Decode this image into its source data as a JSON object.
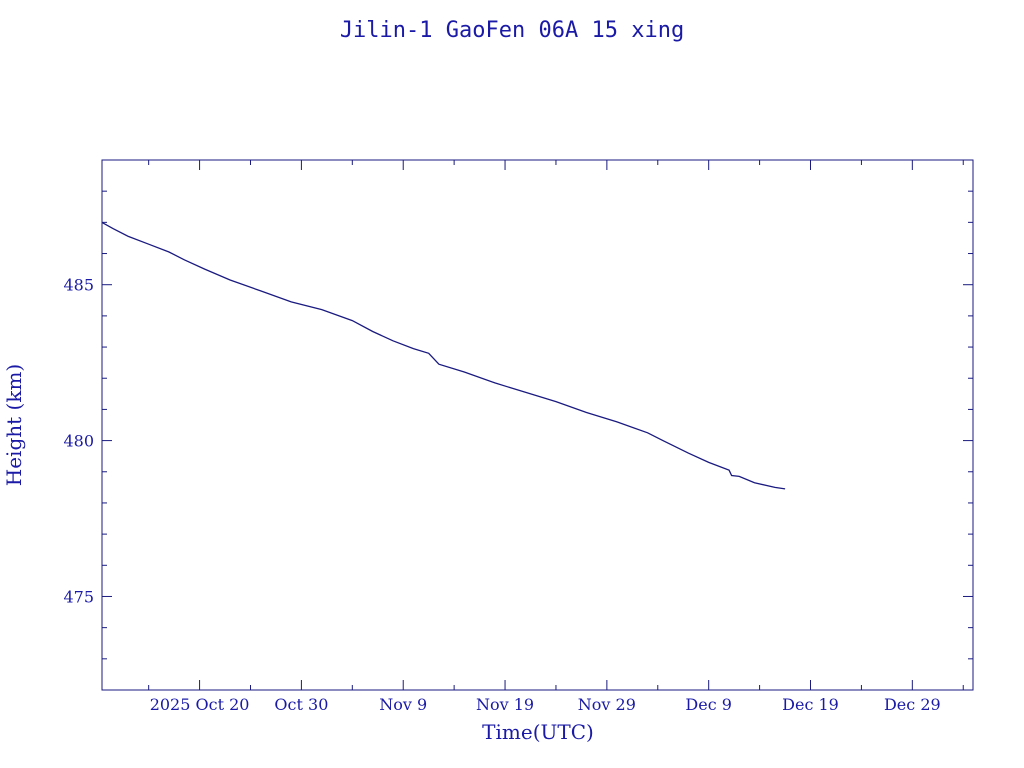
{
  "chart_data": {
    "type": "line",
    "title": "Jilin-1 GaoFen 06A 15 xing",
    "xlabel": "Time(UTC)",
    "ylabel": "Height (km)",
    "x_type": "date",
    "xlim": [
      "2025-10-10T10:00",
      "2026-01-03T23:00"
    ],
    "ylim": [
      472,
      489
    ],
    "x_major_ticks": [
      {
        "date": "2025-10-20",
        "label": "2025 Oct 20"
      },
      {
        "date": "2025-10-30",
        "label": "Oct 30"
      },
      {
        "date": "2025-11-09",
        "label": "Nov  9"
      },
      {
        "date": "2025-11-19",
        "label": "Nov 19"
      },
      {
        "date": "2025-11-29",
        "label": "Nov 29"
      },
      {
        "date": "2025-12-09",
        "label": "Dec  9"
      },
      {
        "date": "2025-12-19",
        "label": "Dec 19"
      },
      {
        "date": "2025-12-29",
        "label": "Dec 29"
      }
    ],
    "x_minor_ticks": [
      "2025-10-15",
      "2025-10-25",
      "2025-11-04",
      "2025-11-14",
      "2025-11-24",
      "2025-12-04",
      "2025-12-14",
      "2025-12-24",
      "2026-01-03"
    ],
    "y_major_ticks": [
      475,
      480,
      485
    ],
    "y_minor_ticks": [
      473,
      474,
      476,
      477,
      478,
      479,
      481,
      482,
      483,
      484,
      486,
      487,
      488
    ],
    "grid": false,
    "series": [
      {
        "color": "#1a1a80",
        "points": [
          {
            "x": "2025-10-10T10:00",
            "y": 487.0
          },
          {
            "x": "2025-10-11T12:00",
            "y": 486.8
          },
          {
            "x": "2025-10-13T00:00",
            "y": 486.55
          },
          {
            "x": "2025-10-15T00:00",
            "y": 486.3
          },
          {
            "x": "2025-10-17T00:00",
            "y": 486.05
          },
          {
            "x": "2025-10-18T12:00",
            "y": 485.8
          },
          {
            "x": "2025-10-20T12:00",
            "y": 485.5
          },
          {
            "x": "2025-10-23T00:00",
            "y": 485.15
          },
          {
            "x": "2025-10-26T00:00",
            "y": 484.8
          },
          {
            "x": "2025-10-29T00:00",
            "y": 484.45
          },
          {
            "x": "2025-11-01T00:00",
            "y": 484.2
          },
          {
            "x": "2025-11-04T00:00",
            "y": 483.85
          },
          {
            "x": "2025-11-06T00:00",
            "y": 483.5
          },
          {
            "x": "2025-11-08T00:00",
            "y": 483.2
          },
          {
            "x": "2025-11-10T00:00",
            "y": 482.95
          },
          {
            "x": "2025-11-11T12:00",
            "y": 482.8
          },
          {
            "x": "2025-11-12T12:00",
            "y": 482.45
          },
          {
            "x": "2025-11-15T00:00",
            "y": 482.2
          },
          {
            "x": "2025-11-18T00:00",
            "y": 481.85
          },
          {
            "x": "2025-11-21T00:00",
            "y": 481.55
          },
          {
            "x": "2025-11-24T00:00",
            "y": 481.25
          },
          {
            "x": "2025-11-27T00:00",
            "y": 480.9
          },
          {
            "x": "2025-11-30T00:00",
            "y": 480.6
          },
          {
            "x": "2025-12-03T00:00",
            "y": 480.25
          },
          {
            "x": "2025-12-04T12:00",
            "y": 480.0
          },
          {
            "x": "2025-12-07T00:00",
            "y": 479.6
          },
          {
            "x": "2025-12-09T00:00",
            "y": 479.3
          },
          {
            "x": "2025-12-11T00:00",
            "y": 479.05
          },
          {
            "x": "2025-12-11T06:00",
            "y": 478.88
          },
          {
            "x": "2025-12-12T00:00",
            "y": 478.85
          },
          {
            "x": "2025-12-13T12:00",
            "y": 478.65
          },
          {
            "x": "2025-12-15T12:00",
            "y": 478.5
          },
          {
            "x": "2025-12-16T12:00",
            "y": 478.45
          }
        ]
      }
    ]
  },
  "colors": {
    "axis": "#1a1a80",
    "text": "#1a1aa6",
    "background": "#ffffff"
  }
}
